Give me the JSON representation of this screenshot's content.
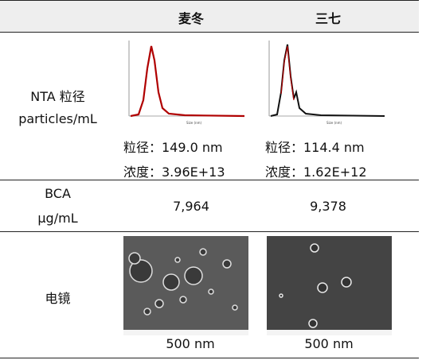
{
  "table": {
    "columns": [
      "麦冬",
      "三七"
    ],
    "rows": [
      {
        "label": [
          "NTA 粒径",
          "particles/mL"
        ],
        "cells": [
          [
            "粒径：149.0 nm",
            "浓度：3.96E+13"
          ],
          [
            "粒径：114.4 nm",
            "浓度：1.62E+12"
          ]
        ]
      },
      {
        "label": [
          "BCA",
          "μg/mL"
        ],
        "cells": [
          [
            "7,964"
          ],
          [
            "9,378"
          ]
        ]
      },
      {
        "label": [
          "电镜"
        ],
        "cells": [
          [
            "500 nm"
          ],
          [
            "500 nm"
          ]
        ]
      }
    ]
  }
}
